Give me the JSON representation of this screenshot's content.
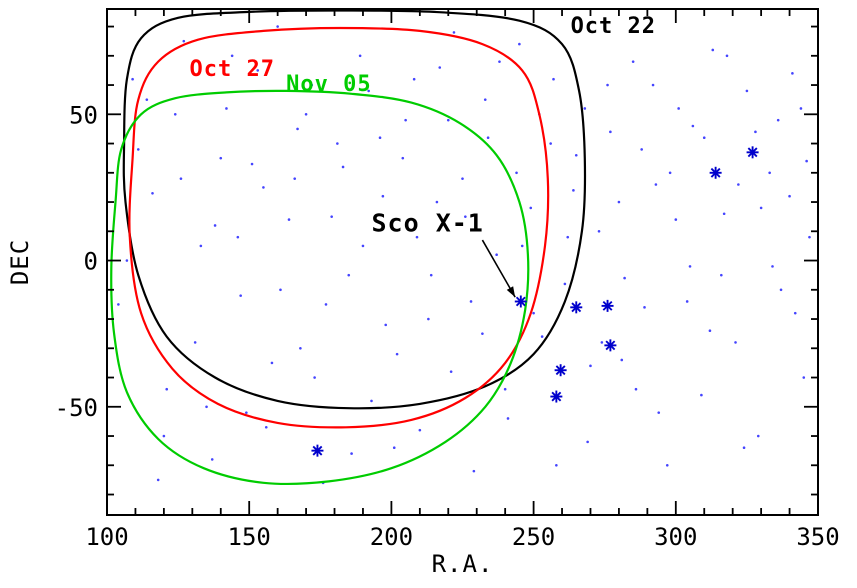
{
  "figure": {
    "background": "#ffffff"
  },
  "chart_data": {
    "type": "scatter",
    "title": "",
    "xlabel": "R.A.",
    "ylabel": "DEC",
    "xlim": [
      100,
      350
    ],
    "ylim": [
      -87,
      86
    ],
    "x_ticks": {
      "major": [
        100,
        150,
        200,
        250,
        300,
        350
      ],
      "minor_step": 10
    },
    "y_ticks": {
      "major": [
        -50,
        0,
        50
      ],
      "minor_step": 10
    },
    "colors": {
      "axis": "#000000",
      "dots": "#4444ff",
      "sources": "#0000cc",
      "oct22": "#000000",
      "oct27": "#ff0000",
      "nov05": "#00cc00"
    },
    "contours": [
      {
        "label": "Oct 22",
        "color": "#000000",
        "label_pos": {
          "ra": 263,
          "dec": 80
        },
        "points": [
          [
            106,
            40
          ],
          [
            107,
            62
          ],
          [
            112,
            76
          ],
          [
            125,
            83
          ],
          [
            150,
            85
          ],
          [
            180,
            85.5
          ],
          [
            215,
            85
          ],
          [
            245,
            82
          ],
          [
            260,
            74
          ],
          [
            266,
            58
          ],
          [
            268,
            35
          ],
          [
            267,
            10
          ],
          [
            261,
            -14
          ],
          [
            250,
            -32
          ],
          [
            233,
            -43
          ],
          [
            210,
            -49
          ],
          [
            185,
            -50.5
          ],
          [
            160,
            -48
          ],
          [
            138,
            -40
          ],
          [
            121,
            -26
          ],
          [
            111,
            -5
          ],
          [
            106.5,
            20
          ]
        ]
      },
      {
        "label": "Oct 27",
        "color": "#ff0000",
        "label_pos": {
          "ra": 129,
          "dec": 65
        },
        "points": [
          [
            109,
            35
          ],
          [
            111,
            55
          ],
          [
            118,
            68
          ],
          [
            132,
            75.5
          ],
          [
            155,
            78.5
          ],
          [
            182,
            79.5
          ],
          [
            210,
            78.5
          ],
          [
            232,
            74
          ],
          [
            246,
            65
          ],
          [
            252,
            50
          ],
          [
            255,
            28
          ],
          [
            254,
            5
          ],
          [
            249,
            -18
          ],
          [
            240,
            -35
          ],
          [
            226,
            -47
          ],
          [
            207,
            -54.5
          ],
          [
            184,
            -57
          ],
          [
            160,
            -55.5
          ],
          [
            139,
            -49
          ],
          [
            123,
            -37
          ],
          [
            112,
            -18
          ],
          [
            108,
            8
          ]
        ]
      },
      {
        "label": "Nov 05",
        "color": "#00cc00",
        "label_pos": {
          "ra": 163,
          "dec": 60
        },
        "points": [
          [
            103,
            20
          ],
          [
            105,
            38
          ],
          [
            112,
            50
          ],
          [
            124,
            55.5
          ],
          [
            142,
            57.5
          ],
          [
            163,
            58
          ],
          [
            186,
            57
          ],
          [
            207,
            54
          ],
          [
            224,
            47
          ],
          [
            237,
            36
          ],
          [
            245,
            20
          ],
          [
            248,
            2
          ],
          [
            247,
            -17
          ],
          [
            242,
            -35
          ],
          [
            233,
            -50
          ],
          [
            219,
            -62
          ],
          [
            200,
            -71
          ],
          [
            178,
            -75.5
          ],
          [
            155,
            -76
          ],
          [
            134,
            -71
          ],
          [
            118,
            -61
          ],
          [
            107,
            -45
          ],
          [
            102.5,
            -25
          ],
          [
            101.5,
            -3
          ]
        ]
      }
    ],
    "sources": [
      [
        245.5,
        -14
      ],
      [
        265,
        -16
      ],
      [
        276,
        -15.5
      ],
      [
        277,
        -29
      ],
      [
        259.5,
        -37.5
      ],
      [
        258,
        -46.5
      ],
      [
        314,
        30
      ],
      [
        327,
        37
      ],
      [
        174,
        -65
      ]
    ],
    "annotation": {
      "text": "Sco X-1",
      "label_pos": {
        "ra": 193,
        "dec": 13
      },
      "arrow": {
        "from": [
          232,
          7
        ],
        "to": [
          243.5,
          -12.5
        ]
      }
    },
    "background_dots": [
      [
        109,
        62
      ],
      [
        116,
        23
      ],
      [
        121,
        -44
      ],
      [
        127,
        75
      ],
      [
        133,
        5
      ],
      [
        137,
        -68
      ],
      [
        142,
        52
      ],
      [
        147,
        -12
      ],
      [
        151,
        33
      ],
      [
        156,
        -57
      ],
      [
        160,
        80
      ],
      [
        164,
        14
      ],
      [
        168,
        -30
      ],
      [
        172,
        60
      ],
      [
        176,
        -76
      ],
      [
        181,
        40
      ],
      [
        185,
        -5
      ],
      [
        189,
        70
      ],
      [
        193,
        -48
      ],
      [
        197,
        22
      ],
      [
        201,
        -64
      ],
      [
        205,
        48
      ],
      [
        209,
        8
      ],
      [
        213,
        -20
      ],
      [
        217,
        66
      ],
      [
        221,
        -38
      ],
      [
        225,
        28
      ],
      [
        229,
        -72
      ],
      [
        233,
        55
      ],
      [
        237,
        2
      ],
      [
        241,
        -54
      ],
      [
        245,
        74
      ],
      [
        249,
        18
      ],
      [
        253,
        -26
      ],
      [
        257,
        62
      ],
      [
        261,
        -8
      ],
      [
        265,
        36
      ],
      [
        269,
        -62
      ],
      [
        273,
        10
      ],
      [
        277,
        44
      ],
      [
        281,
        -34
      ],
      [
        285,
        68
      ],
      [
        289,
        -16
      ],
      [
        293,
        26
      ],
      [
        297,
        -70
      ],
      [
        301,
        52
      ],
      [
        305,
        -2
      ],
      [
        309,
        -46
      ],
      [
        313,
        72
      ],
      [
        317,
        16
      ],
      [
        321,
        -28
      ],
      [
        325,
        58
      ],
      [
        329,
        -60
      ],
      [
        333,
        30
      ],
      [
        337,
        -10
      ],
      [
        341,
        64
      ],
      [
        345,
        -40
      ],
      [
        347,
        8
      ],
      [
        104,
        -15
      ],
      [
        111,
        38
      ],
      [
        118,
        -75
      ],
      [
        124,
        50
      ],
      [
        131,
        -28
      ],
      [
        138,
        12
      ],
      [
        144,
        70
      ],
      [
        149,
        -52
      ],
      [
        155,
        25
      ],
      [
        161,
        -10
      ],
      [
        167,
        45
      ],
      [
        173,
        -40
      ],
      [
        179,
        15
      ],
      [
        186,
        -66
      ],
      [
        192,
        58
      ],
      [
        198,
        -22
      ],
      [
        204,
        35
      ],
      [
        210,
        -58
      ],
      [
        216,
        20
      ],
      [
        222,
        78
      ],
      [
        228,
        -14
      ],
      [
        234,
        42
      ],
      [
        240,
        -44
      ],
      [
        246,
        5
      ],
      [
        252,
        50
      ],
      [
        258,
        -70
      ],
      [
        264,
        24
      ],
      [
        270,
        -36
      ],
      [
        276,
        60
      ],
      [
        282,
        -6
      ],
      [
        288,
        38
      ],
      [
        294,
        -52
      ],
      [
        300,
        14
      ],
      [
        306,
        46
      ],
      [
        312,
        -24
      ],
      [
        318,
        70
      ],
      [
        324,
        -64
      ],
      [
        330,
        18
      ],
      [
        336,
        48
      ],
      [
        342,
        -18
      ],
      [
        346,
        34
      ],
      [
        107,
        0
      ],
      [
        114,
        55
      ],
      [
        120,
        -60
      ],
      [
        126,
        28
      ],
      [
        135,
        -50
      ],
      [
        140,
        35
      ],
      [
        146,
        8
      ],
      [
        153,
        65
      ],
      [
        158,
        -35
      ],
      [
        166,
        28
      ],
      [
        170,
        50
      ],
      [
        177,
        -15
      ],
      [
        183,
        32
      ],
      [
        190,
        5
      ],
      [
        196,
        42
      ],
      [
        202,
        -32
      ],
      [
        208,
        62
      ],
      [
        214,
        -5
      ],
      [
        220,
        48
      ],
      [
        226,
        15
      ],
      [
        232,
        -25
      ],
      [
        238,
        68
      ],
      [
        244,
        30
      ],
      [
        250,
        -18
      ],
      [
        256,
        40
      ],
      [
        262,
        8
      ],
      [
        268,
        52
      ],
      [
        274,
        -28
      ],
      [
        280,
        20
      ],
      [
        286,
        -44
      ],
      [
        292,
        60
      ],
      [
        298,
        30
      ],
      [
        304,
        -14
      ],
      [
        310,
        42
      ],
      [
        316,
        -5
      ],
      [
        322,
        26
      ],
      [
        328,
        44
      ],
      [
        334,
        -2
      ],
      [
        340,
        22
      ],
      [
        344,
        52
      ]
    ]
  }
}
